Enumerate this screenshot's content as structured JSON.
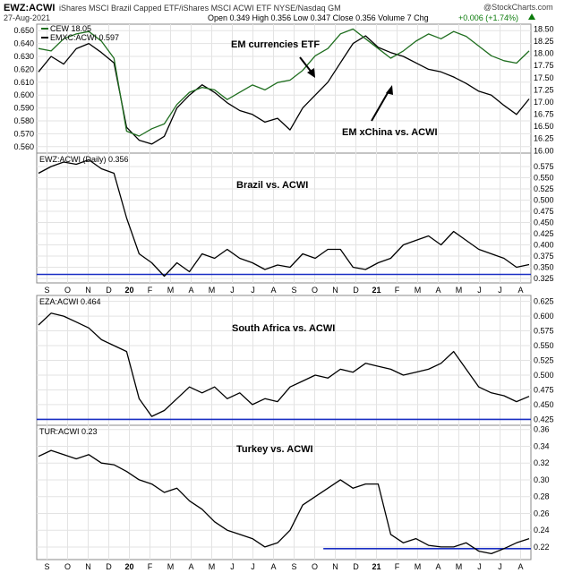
{
  "header": {
    "symbol": "EWZ:ACWI",
    "description": "iShares MSCI Brazil Capped ETF/iShares MSCI ACWI ETF  NYSE/Nasdaq GM",
    "date": "27-Aug-2021",
    "ohlc": "Open 0.349  High 0.356  Low 0.347  Close 0.356  Volume 7  Chg",
    "change": "+0.006 (+1.74%)",
    "change_arrow": "triangle-up-icon",
    "brand": "@StockCharts.com"
  },
  "colors": {
    "green_series": "#1f6e1f",
    "black_series": "#000000",
    "support_line": "#1a2fc4",
    "grid": "#e3e3e3"
  },
  "x_axis": {
    "labels": [
      "S",
      "O",
      "N",
      "D",
      "20",
      "F",
      "M",
      "A",
      "M",
      "J",
      "J",
      "A",
      "S",
      "O",
      "N",
      "D",
      "21",
      "F",
      "M",
      "A",
      "M",
      "J",
      "J",
      "A"
    ],
    "year_labels": [
      "20",
      "21"
    ]
  },
  "chart_data": [
    {
      "type": "line",
      "panel": "EM currencies vs EM xChina",
      "legend": [
        "CEW 18.05",
        "EMXC:ACWI 0.597"
      ],
      "annotations": [
        "EM currencies ETF",
        "EM xChina vs. ACWI"
      ],
      "left_axis_ticks": [
        "0.650",
        "0.640",
        "0.630",
        "0.620",
        "0.610",
        "0.600",
        "0.590",
        "0.580",
        "0.570",
        "0.560"
      ],
      "right_axis_ticks": [
        "18.50",
        "18.25",
        "18.00",
        "17.75",
        "17.50",
        "17.25",
        "17.00",
        "16.75",
        "16.50",
        "16.25",
        "16.00"
      ],
      "ylim_left": [
        0.555,
        0.655
      ],
      "ylim_right": [
        15.95,
        18.6
      ],
      "series": [
        {
          "name": "EMXC:ACWI 0.597",
          "axis": "left",
          "values": [
            0.618,
            0.63,
            0.624,
            0.636,
            0.64,
            0.633,
            0.625,
            0.575,
            0.565,
            0.562,
            0.568,
            0.59,
            0.6,
            0.608,
            0.602,
            0.594,
            0.588,
            0.585,
            0.579,
            0.582,
            0.573,
            0.59,
            0.6,
            0.61,
            0.625,
            0.64,
            0.646,
            0.637,
            0.633,
            0.63,
            0.625,
            0.62,
            0.618,
            0.614,
            0.609,
            0.603,
            0.6,
            0.592,
            0.585,
            0.597
          ]
        },
        {
          "name": "CEW 18.05",
          "axis": "right",
          "values": [
            18.1,
            18.05,
            18.3,
            18.4,
            18.45,
            18.25,
            17.9,
            16.4,
            16.3,
            16.45,
            16.55,
            16.95,
            17.2,
            17.3,
            17.25,
            17.05,
            17.2,
            17.35,
            17.25,
            17.4,
            17.45,
            17.65,
            17.95,
            18.1,
            18.4,
            18.5,
            18.3,
            18.1,
            17.9,
            18.05,
            18.25,
            18.4,
            18.3,
            18.45,
            18.35,
            18.15,
            17.95,
            17.85,
            17.8,
            18.05
          ]
        }
      ]
    },
    {
      "type": "line",
      "panel": "Brazil vs. ACWI",
      "legend": [
        "EWZ:ACWI (Daily) 0.356"
      ],
      "annotations": [
        "Brazil vs. ACWI"
      ],
      "right_axis_ticks": [
        "0.600",
        "0.575",
        "0.550",
        "0.525",
        "0.500",
        "0.475",
        "0.450",
        "0.425",
        "0.400",
        "0.375",
        "0.350",
        "0.325"
      ],
      "ylim": [
        0.315,
        0.605
      ],
      "support_level": 0.334,
      "series": [
        {
          "name": "EWZ:ACWI",
          "values": [
            0.56,
            0.575,
            0.585,
            0.58,
            0.59,
            0.57,
            0.56,
            0.46,
            0.38,
            0.36,
            0.33,
            0.36,
            0.34,
            0.38,
            0.37,
            0.39,
            0.37,
            0.36,
            0.345,
            0.355,
            0.35,
            0.38,
            0.37,
            0.39,
            0.39,
            0.35,
            0.345,
            0.36,
            0.37,
            0.4,
            0.41,
            0.42,
            0.4,
            0.43,
            0.41,
            0.39,
            0.38,
            0.37,
            0.35,
            0.356
          ]
        }
      ]
    },
    {
      "type": "line",
      "panel": "South Africa vs. ACWI",
      "legend": [
        "EZA:ACWI 0.464"
      ],
      "annotations": [
        "South Africa vs. ACWI"
      ],
      "right_axis_ticks": [
        "0.625",
        "0.600",
        "0.575",
        "0.550",
        "0.525",
        "0.500",
        "0.475",
        "0.450",
        "0.425"
      ],
      "ylim": [
        0.415,
        0.635
      ],
      "support_level": 0.425,
      "series": [
        {
          "name": "EZA:ACWI",
          "values": [
            0.585,
            0.605,
            0.6,
            0.59,
            0.58,
            0.56,
            0.55,
            0.54,
            0.46,
            0.43,
            0.44,
            0.46,
            0.48,
            0.47,
            0.48,
            0.46,
            0.47,
            0.45,
            0.46,
            0.455,
            0.48,
            0.49,
            0.5,
            0.495,
            0.51,
            0.505,
            0.52,
            0.515,
            0.51,
            0.5,
            0.505,
            0.51,
            0.52,
            0.54,
            0.51,
            0.48,
            0.47,
            0.465,
            0.455,
            0.464
          ]
        }
      ]
    },
    {
      "type": "line",
      "panel": "Turkey vs. ACWI",
      "legend": [
        "TUR:ACWI 0.23"
      ],
      "annotations": [
        "Turkey vs. ACWI"
      ],
      "right_axis_ticks": [
        "0.36",
        "0.34",
        "0.32",
        "0.30",
        "0.28",
        "0.26",
        "0.24",
        "0.22",
        "0.20"
      ],
      "ylim": [
        0.205,
        0.365
      ],
      "support_level": 0.218,
      "series": [
        {
          "name": "TUR:ACWI",
          "values": [
            0.328,
            0.335,
            0.33,
            0.325,
            0.33,
            0.32,
            0.318,
            0.31,
            0.3,
            0.295,
            0.285,
            0.29,
            0.275,
            0.265,
            0.25,
            0.24,
            0.235,
            0.23,
            0.22,
            0.225,
            0.24,
            0.27,
            0.28,
            0.29,
            0.3,
            0.29,
            0.295,
            0.295,
            0.235,
            0.225,
            0.23,
            0.222,
            0.22,
            0.22,
            0.225,
            0.215,
            0.212,
            0.218,
            0.225,
            0.23
          ]
        }
      ]
    }
  ]
}
